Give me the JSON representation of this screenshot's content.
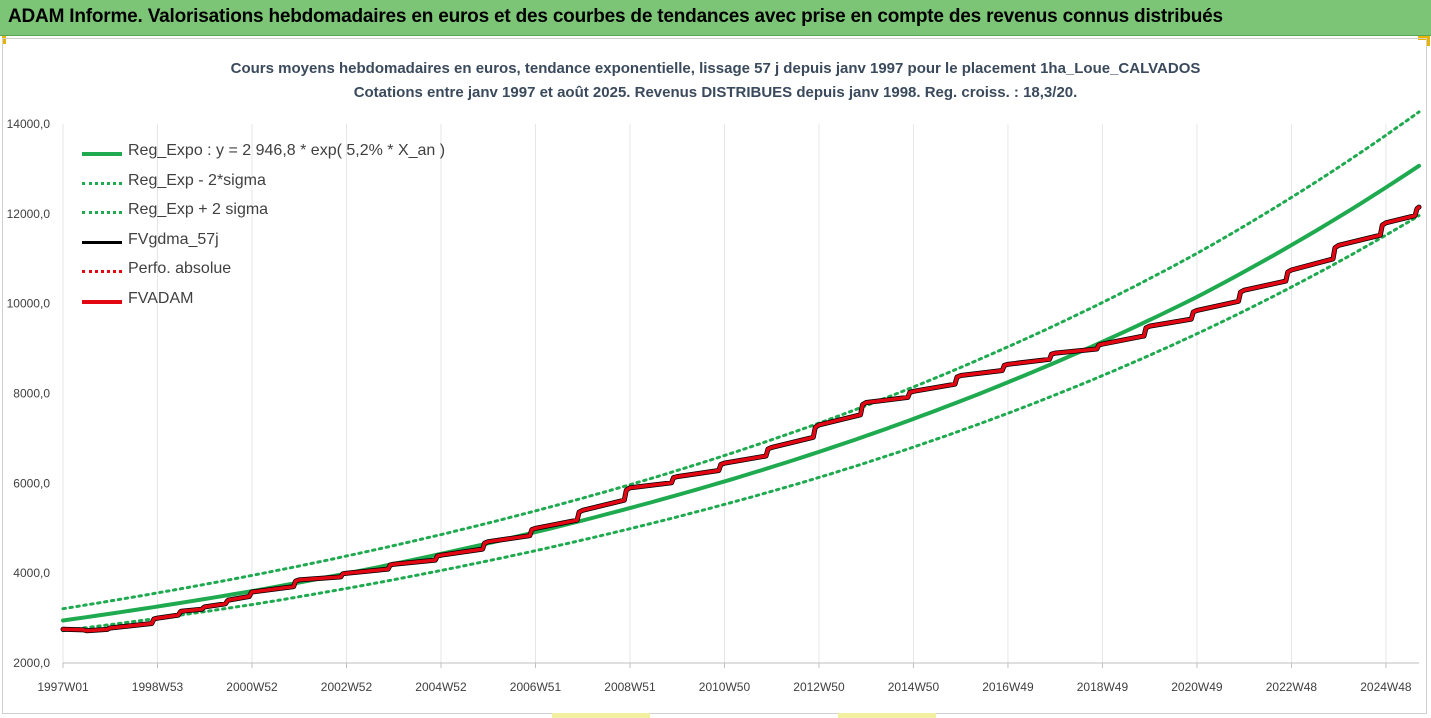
{
  "banner": {
    "title": "ADAM Informe. Valorisations hebdomadaires en euros et des courbes de tendances avec prise en compte des revenus connus distribués"
  },
  "colors": {
    "banner_bg": "#7cc576",
    "trend_green": "#1faa50",
    "fvadam_red": "#e30613",
    "gdma_black": "#000000",
    "axis_text": "#404040",
    "gridline": "#e6e6e6"
  },
  "chart_data": {
    "type": "line",
    "title": "Cours moyens hebdomadaires en euros, tendance exponentielle, lissage 57 j depuis janv 1997 pour le placement 1ha_Loue_CALVADOS",
    "subtitle": "Cotations entre janv 1997 et août 2025. Revenus DISTRIBUES depuis janv 1998. Reg. croiss. : 18,3/20.",
    "xlabel": "",
    "ylabel": "",
    "x_tick_labels": [
      "1997W01",
      "1998W53",
      "2000W52",
      "2002W52",
      "2004W52",
      "2006W51",
      "2008W51",
      "2010W50",
      "2012W50",
      "2014W50",
      "2016W49",
      "2018W49",
      "2020W49",
      "2022W48",
      "2024W48"
    ],
    "x_tick_years": [
      1997.0,
      1999.0,
      2001.0,
      2003.0,
      2005.0,
      2007.0,
      2009.0,
      2011.0,
      2013.0,
      2015.0,
      2017.0,
      2019.0,
      2021.0,
      2023.0,
      2025.0
    ],
    "x_range": [
      1997.0,
      2025.7
    ],
    "y_tick_labels": [
      "2000,0",
      "4000,0",
      "6000,0",
      "8000,0",
      "10000,0",
      "12000,0",
      "14000,0"
    ],
    "ylim": [
      2000,
      14000
    ],
    "grid": "vertical",
    "legend_position": "top-left",
    "legend": [
      {
        "label": "Reg_Expo : y = 2 946,8 * exp( 5,2% *  X_an )",
        "color": "#1faa50",
        "style": "solid"
      },
      {
        "label": "Reg_Exp - 2*sigma",
        "color": "#1faa50",
        "style": "dotted"
      },
      {
        "label": "Reg_Exp + 2 sigma",
        "color": "#1faa50",
        "style": "dotted"
      },
      {
        "label": "FVgdma_57j",
        "color": "#000000",
        "style": "solid"
      },
      {
        "label": "Perfo. absolue",
        "color": "#e30613",
        "style": "dotted"
      },
      {
        "label": "FVADAM",
        "color": "#e30613",
        "style": "solid-thick"
      }
    ],
    "series": [
      {
        "name": "Reg_Expo : y = 2 946,8 * exp( 5,2% *  X_an )",
        "x": [
          1997.0,
          2001.0,
          2005.0,
          2009.0,
          2013.0,
          2017.0,
          2021.0,
          2025.7
        ],
        "values": [
          2947,
          3600,
          4430,
          5450,
          6700,
          8250,
          10150,
          13070
        ]
      },
      {
        "name": "Reg_Exp - 2*sigma",
        "x": [
          1997.0,
          2001.0,
          2005.0,
          2009.0,
          2013.0,
          2017.0,
          2021.0,
          2025.7
        ],
        "values": [
          2720,
          3300,
          4060,
          4990,
          6130,
          7560,
          9330,
          11960
        ]
      },
      {
        "name": "Reg_Exp + 2 sigma",
        "x": [
          1997.0,
          2001.0,
          2005.0,
          2009.0,
          2013.0,
          2017.0,
          2021.0,
          2025.7
        ],
        "values": [
          3210,
          3950,
          4860,
          5970,
          7340,
          9040,
          11120,
          14270
        ]
      },
      {
        "name": "FVADAM",
        "x": [
          1997.0,
          1997.5,
          1998.0,
          1999.0,
          1999.5,
          2000.0,
          2000.5,
          2001.0,
          2002.0,
          2003.0,
          2004.0,
          2005.0,
          2006.0,
          2007.0,
          2008.0,
          2009.0,
          2010.0,
          2011.0,
          2012.0,
          2013.0,
          2014.0,
          2015.0,
          2016.0,
          2017.0,
          2018.0,
          2019.0,
          2020.0,
          2021.0,
          2022.0,
          2023.0,
          2024.0,
          2025.0,
          2025.7
        ],
        "values": [
          2750,
          2720,
          2780,
          3000,
          3150,
          3250,
          3400,
          3580,
          3850,
          4000,
          4200,
          4400,
          4700,
          5000,
          5400,
          5900,
          6150,
          6450,
          6800,
          7300,
          7800,
          8050,
          8400,
          8650,
          8900,
          9100,
          9500,
          9850,
          10300,
          10750,
          11300,
          11800,
          12150
        ]
      },
      {
        "name": "FVgdma_57j",
        "x": [
          1997.0,
          1997.5,
          1998.0,
          1999.0,
          1999.5,
          2000.0,
          2000.5,
          2001.0,
          2002.0,
          2003.0,
          2004.0,
          2005.0,
          2006.0,
          2007.0,
          2008.0,
          2009.0,
          2010.0,
          2011.0,
          2012.0,
          2013.0,
          2014.0,
          2015.0,
          2016.0,
          2017.0,
          2018.0,
          2019.0,
          2020.0,
          2021.0,
          2022.0,
          2023.0,
          2024.0,
          2025.0,
          2025.7
        ],
        "values": [
          2750,
          2720,
          2780,
          3000,
          3150,
          3250,
          3400,
          3580,
          3850,
          4000,
          4200,
          4400,
          4700,
          5000,
          5400,
          5900,
          6150,
          6450,
          6800,
          7300,
          7800,
          8050,
          8400,
          8650,
          8900,
          9100,
          9500,
          9850,
          10300,
          10750,
          11300,
          11800,
          12150
        ]
      }
    ]
  }
}
